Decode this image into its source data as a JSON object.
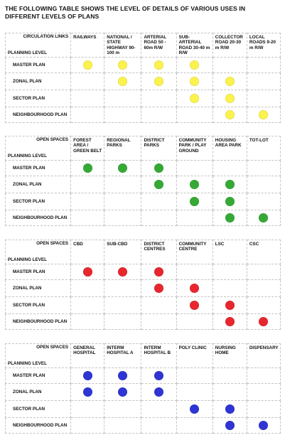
{
  "title": "THE FOLLOWING TABLE SHOWS THE LEVEL OF DETAILS OF VARIOUS USES IN DIFFERENT LEVELS OF PLANS",
  "planning_level_label": "PLANNING LEVEL",
  "tables": [
    {
      "category": "CIRCULATION LINKS",
      "color": "#fbf24d",
      "columns": [
        "RAILWAYS",
        "NATIONAL / STATE HIGHWAY 90-100 m",
        "ARTERIAL ROAD 50 - 60m R/W",
        "SUB-ARTERIAL ROAD 30-40 m R/W",
        "COLLECTOR ROAD 20-30 m R/W",
        "LOCAL ROADS 9-20 m R/W"
      ],
      "rows": [
        {
          "label": "MASTER PLAN",
          "marks": [
            1,
            1,
            1,
            1,
            0,
            0
          ]
        },
        {
          "label": "ZONAL PLAN",
          "marks": [
            0,
            1,
            1,
            1,
            1,
            0
          ]
        },
        {
          "label": "SECTOR PLAN",
          "marks": [
            0,
            0,
            0,
            1,
            1,
            0
          ]
        },
        {
          "label": "NEIGHBOURHOOD PLAN",
          "marks": [
            0,
            0,
            0,
            0,
            1,
            1
          ]
        }
      ]
    },
    {
      "category": "OPEN SPACES",
      "color": "#35a935",
      "columns": [
        "FOREST AREA / GREEN BELT",
        "REGIONAL PARKS",
        "DISTRICT PARKS",
        "COMMUNITY PARK / PLAY GROUND",
        "HOUSING AREA PARK",
        "TOT-LOT"
      ],
      "rows": [
        {
          "label": "MASTER PLAN",
          "marks": [
            1,
            1,
            1,
            0,
            0,
            0
          ]
        },
        {
          "label": "ZONAL PLAN",
          "marks": [
            0,
            0,
            1,
            1,
            1,
            0
          ]
        },
        {
          "label": "SECTOR PLAN",
          "marks": [
            0,
            0,
            0,
            1,
            1,
            0
          ]
        },
        {
          "label": "NEIGHBOURHOOD PLAN",
          "marks": [
            0,
            0,
            0,
            0,
            1,
            1
          ]
        }
      ]
    },
    {
      "category": "OPEN SPACES",
      "color": "#e8262e",
      "columns": [
        "CBD",
        "SUB-CBD",
        "DISTRICT CENTRES",
        "COMMUNITY CENTRE",
        "LSC",
        "CSC"
      ],
      "rows": [
        {
          "label": "MASTER PLAN",
          "marks": [
            1,
            1,
            1,
            0,
            0,
            0
          ]
        },
        {
          "label": "ZONAL PLAN",
          "marks": [
            0,
            0,
            1,
            1,
            0,
            0
          ]
        },
        {
          "label": "SECTOR PLAN",
          "marks": [
            0,
            0,
            0,
            1,
            1,
            0
          ]
        },
        {
          "label": "NEIGHBOURHOOD PLAN",
          "marks": [
            0,
            0,
            0,
            0,
            1,
            1
          ]
        }
      ]
    },
    {
      "category": "OPEN SPACES",
      "color": "#2f35d4",
      "columns": [
        "GENERAL HOSPITAL",
        "INTERM HOSPITAL A",
        "INTERM HOSPITAL B",
        "POLY CLINIC",
        "NURSING HOME",
        "DISPENSARY"
      ],
      "rows": [
        {
          "label": "MASTER PLAN",
          "marks": [
            1,
            1,
            1,
            0,
            0,
            0
          ]
        },
        {
          "label": "ZONAL PLAN",
          "marks": [
            1,
            1,
            1,
            0,
            0,
            0
          ]
        },
        {
          "label": "SECTOR PLAN",
          "marks": [
            0,
            0,
            0,
            1,
            1,
            0
          ]
        },
        {
          "label": "NEIGHBOURHOOD PLAN",
          "marks": [
            0,
            0,
            0,
            0,
            1,
            1
          ]
        }
      ]
    }
  ]
}
